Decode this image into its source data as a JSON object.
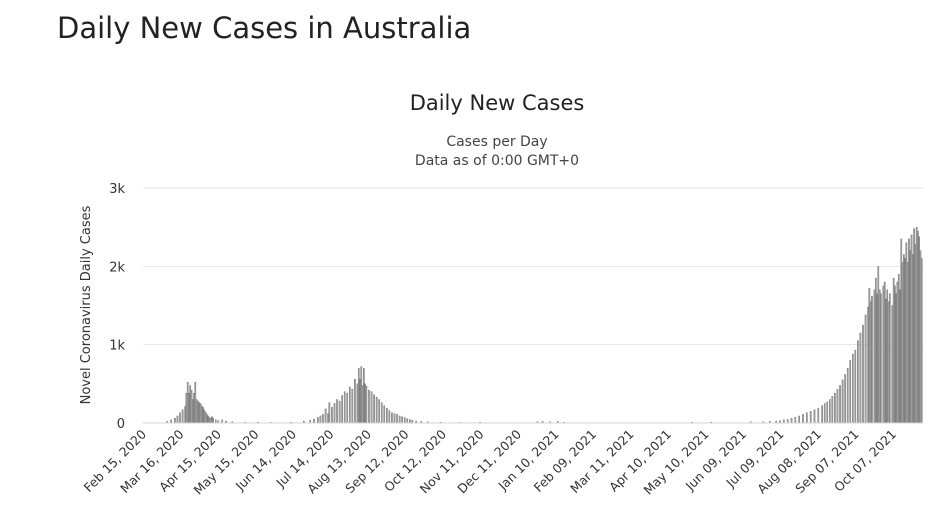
{
  "page_title": "Daily New Cases in Australia",
  "chart_data": {
    "type": "bar",
    "title": "Daily New Cases",
    "subtitle": "Cases per Day",
    "subtitle2": "Data as of 0:00 GMT+0",
    "xlabel": "",
    "ylabel": "Novel Coronavirus Daily Cases",
    "ylim": [
      0,
      3000
    ],
    "yticks": [
      0,
      1000,
      2000,
      3000
    ],
    "ytick_labels": [
      "0",
      "1k",
      "2k",
      "3k"
    ],
    "x_start": "2020-02-15",
    "x_end": "2021-10-18",
    "xtick_labels": [
      "Feb 15, 2020",
      "Mar 16, 2020",
      "Apr 15, 2020",
      "May 15, 2020",
      "Jun 14, 2020",
      "Jul 14, 2020",
      "Aug 13, 2020",
      "Sep 12, 2020",
      "Oct 12, 2020",
      "Nov 11, 2020",
      "Dec 11, 2020",
      "Jan 10, 2021",
      "Feb 09, 2021",
      "Mar 11, 2021",
      "Apr 10, 2021",
      "May 10, 2021",
      "Jun 09, 2021",
      "Jul 09, 2021",
      "Aug 08, 2021",
      "Sep 07, 2021",
      "Oct 07, 2021"
    ],
    "grid": true,
    "bar_color": "#a8a8a8",
    "bar_outline_color": "#555555",
    "grid_color": "#e6e6e6",
    "series": [
      {
        "name": "Daily Cases",
        "points": [
          [
            "2020-03-05",
            20
          ],
          [
            "2020-03-08",
            40
          ],
          [
            "2020-03-11",
            60
          ],
          [
            "2020-03-13",
            90
          ],
          [
            "2020-03-15",
            130
          ],
          [
            "2020-03-17",
            170
          ],
          [
            "2020-03-19",
            210
          ],
          [
            "2020-03-20",
            380
          ],
          [
            "2020-03-21",
            520
          ],
          [
            "2020-03-22",
            380
          ],
          [
            "2020-03-23",
            480
          ],
          [
            "2020-03-24",
            420
          ],
          [
            "2020-03-25",
            300
          ],
          [
            "2020-03-26",
            380
          ],
          [
            "2020-03-27",
            520
          ],
          [
            "2020-03-28",
            300
          ],
          [
            "2020-03-29",
            280
          ],
          [
            "2020-03-30",
            260
          ],
          [
            "2020-03-31",
            250
          ],
          [
            "2020-04-01",
            220
          ],
          [
            "2020-04-02",
            200
          ],
          [
            "2020-04-03",
            170
          ],
          [
            "2020-04-04",
            140
          ],
          [
            "2020-04-05",
            110
          ],
          [
            "2020-04-06",
            90
          ],
          [
            "2020-04-07",
            70
          ],
          [
            "2020-04-08",
            60
          ],
          [
            "2020-04-09",
            80
          ],
          [
            "2020-04-10",
            60
          ],
          [
            "2020-04-12",
            40
          ],
          [
            "2020-04-14",
            30
          ],
          [
            "2020-04-17",
            40
          ],
          [
            "2020-04-20",
            25
          ],
          [
            "2020-04-25",
            15
          ],
          [
            "2020-05-05",
            10
          ],
          [
            "2020-05-15",
            10
          ],
          [
            "2020-05-25",
            8
          ],
          [
            "2020-06-10",
            10
          ],
          [
            "2020-06-20",
            25
          ],
          [
            "2020-06-25",
            35
          ],
          [
            "2020-06-28",
            50
          ],
          [
            "2020-07-01",
            70
          ],
          [
            "2020-07-03",
            90
          ],
          [
            "2020-07-05",
            110
          ],
          [
            "2020-07-07",
            180
          ],
          [
            "2020-07-09",
            120
          ],
          [
            "2020-07-10",
            260
          ],
          [
            "2020-07-12",
            200
          ],
          [
            "2020-07-14",
            250
          ],
          [
            "2020-07-16",
            300
          ],
          [
            "2020-07-18",
            280
          ],
          [
            "2020-07-20",
            350
          ],
          [
            "2020-07-22",
            400
          ],
          [
            "2020-07-24",
            380
          ],
          [
            "2020-07-26",
            460
          ],
          [
            "2020-07-28",
            430
          ],
          [
            "2020-07-30",
            560
          ],
          [
            "2020-08-01",
            500
          ],
          [
            "2020-08-02",
            700
          ],
          [
            "2020-08-03",
            560
          ],
          [
            "2020-08-04",
            720
          ],
          [
            "2020-08-05",
            480
          ],
          [
            "2020-08-06",
            700
          ],
          [
            "2020-08-07",
            500
          ],
          [
            "2020-08-08",
            470
          ],
          [
            "2020-08-10",
            420
          ],
          [
            "2020-08-12",
            400
          ],
          [
            "2020-08-14",
            360
          ],
          [
            "2020-08-16",
            330
          ],
          [
            "2020-08-18",
            300
          ],
          [
            "2020-08-20",
            260
          ],
          [
            "2020-08-22",
            220
          ],
          [
            "2020-08-24",
            190
          ],
          [
            "2020-08-26",
            160
          ],
          [
            "2020-08-28",
            130
          ],
          [
            "2020-08-30",
            120
          ],
          [
            "2020-09-01",
            110
          ],
          [
            "2020-09-03",
            90
          ],
          [
            "2020-09-05",
            80
          ],
          [
            "2020-09-07",
            70
          ],
          [
            "2020-09-09",
            55
          ],
          [
            "2020-09-11",
            45
          ],
          [
            "2020-09-13",
            35
          ],
          [
            "2020-09-16",
            25
          ],
          [
            "2020-09-20",
            20
          ],
          [
            "2020-09-25",
            15
          ],
          [
            "2020-10-05",
            10
          ],
          [
            "2020-10-20",
            8
          ],
          [
            "2020-11-05",
            10
          ],
          [
            "2020-12-20",
            15
          ],
          [
            "2020-12-24",
            20
          ],
          [
            "2020-12-30",
            15
          ],
          [
            "2021-01-05",
            20
          ],
          [
            "2021-01-10",
            10
          ],
          [
            "2021-04-20",
            10
          ],
          [
            "2021-05-05",
            12
          ],
          [
            "2021-06-05",
            15
          ],
          [
            "2021-06-15",
            15
          ],
          [
            "2021-06-20",
            20
          ],
          [
            "2021-06-25",
            25
          ],
          [
            "2021-06-28",
            30
          ],
          [
            "2021-07-01",
            40
          ],
          [
            "2021-07-04",
            45
          ],
          [
            "2021-07-07",
            60
          ],
          [
            "2021-07-10",
            75
          ],
          [
            "2021-07-13",
            90
          ],
          [
            "2021-07-16",
            110
          ],
          [
            "2021-07-19",
            130
          ],
          [
            "2021-07-22",
            150
          ],
          [
            "2021-07-25",
            170
          ],
          [
            "2021-07-28",
            190
          ],
          [
            "2021-07-31",
            220
          ],
          [
            "2021-08-02",
            250
          ],
          [
            "2021-08-04",
            270
          ],
          [
            "2021-08-06",
            300
          ],
          [
            "2021-08-08",
            340
          ],
          [
            "2021-08-10",
            380
          ],
          [
            "2021-08-12",
            430
          ],
          [
            "2021-08-14",
            480
          ],
          [
            "2021-08-16",
            550
          ],
          [
            "2021-08-18",
            620
          ],
          [
            "2021-08-20",
            700
          ],
          [
            "2021-08-22",
            800
          ],
          [
            "2021-08-24",
            880
          ],
          [
            "2021-08-26",
            930
          ],
          [
            "2021-08-28",
            1050
          ],
          [
            "2021-08-30",
            1150
          ],
          [
            "2021-09-01",
            1250
          ],
          [
            "2021-09-03",
            1380
          ],
          [
            "2021-09-05",
            1480
          ],
          [
            "2021-09-06",
            1720
          ],
          [
            "2021-09-07",
            1550
          ],
          [
            "2021-09-08",
            1620
          ],
          [
            "2021-09-10",
            1700
          ],
          [
            "2021-09-11",
            1850
          ],
          [
            "2021-09-12",
            1650
          ],
          [
            "2021-09-13",
            2000
          ],
          [
            "2021-09-14",
            1700
          ],
          [
            "2021-09-15",
            1650
          ],
          [
            "2021-09-17",
            1750
          ],
          [
            "2021-09-18",
            1800
          ],
          [
            "2021-09-19",
            1580
          ],
          [
            "2021-09-20",
            1700
          ],
          [
            "2021-09-21",
            1550
          ],
          [
            "2021-09-22",
            1650
          ],
          [
            "2021-09-24",
            1500
          ],
          [
            "2021-09-25",
            1850
          ],
          [
            "2021-09-26",
            1750
          ],
          [
            "2021-09-27",
            1650
          ],
          [
            "2021-09-28",
            1800
          ],
          [
            "2021-09-29",
            1900
          ],
          [
            "2021-09-30",
            1700
          ],
          [
            "2021-10-01",
            2350
          ],
          [
            "2021-10-02",
            2050
          ],
          [
            "2021-10-03",
            2150
          ],
          [
            "2021-10-04",
            2100
          ],
          [
            "2021-10-05",
            2300
          ],
          [
            "2021-10-06",
            2050
          ],
          [
            "2021-10-07",
            2350
          ],
          [
            "2021-10-08",
            2200
          ],
          [
            "2021-10-09",
            2400
          ],
          [
            "2021-10-10",
            2150
          ],
          [
            "2021-10-11",
            2480
          ],
          [
            "2021-10-12",
            2280
          ],
          [
            "2021-10-13",
            2500
          ],
          [
            "2021-10-14",
            2450
          ],
          [
            "2021-10-15",
            2380
          ],
          [
            "2021-10-16",
            2200
          ],
          [
            "2021-10-17",
            2100
          ]
        ]
      }
    ]
  }
}
